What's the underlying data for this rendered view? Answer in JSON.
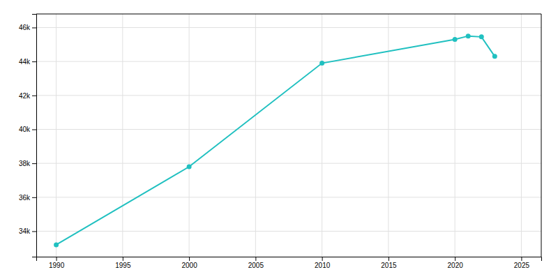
{
  "chart_data": {
    "type": "line",
    "x": [
      1990,
      2000,
      2010,
      2020,
      2021,
      2022,
      2023
    ],
    "values": [
      33200,
      37800,
      43900,
      45300,
      45500,
      45450,
      44300
    ],
    "color": "#20C0C0",
    "marker": "circle",
    "xlim": [
      1988.5,
      2026.5
    ],
    "xticks": [
      1990,
      1995,
      2000,
      2005,
      2010,
      2015,
      2020,
      2025
    ],
    "ylim": [
      32500,
      46800
    ],
    "yticks": [
      {
        "value": 34000,
        "label": "34k"
      },
      {
        "value": 36000,
        "label": "36k"
      },
      {
        "value": 38000,
        "label": "38k"
      },
      {
        "value": 40000,
        "label": "40k"
      },
      {
        "value": 42000,
        "label": "42k"
      },
      {
        "value": 44000,
        "label": "44k"
      },
      {
        "value": 46000,
        "label": "46k"
      }
    ],
    "grid": true
  }
}
